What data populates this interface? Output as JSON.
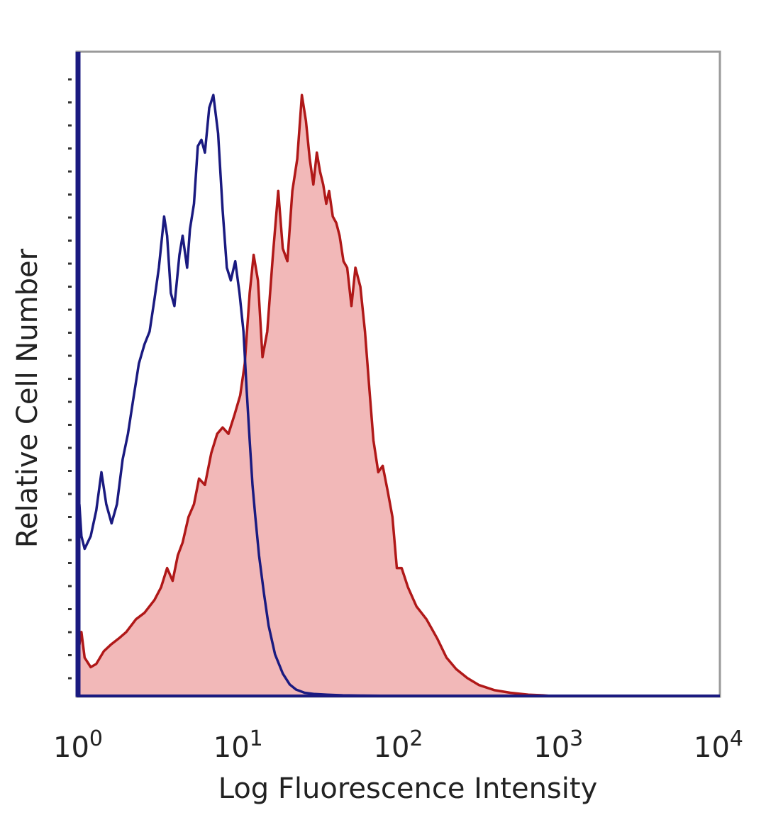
{
  "chart_data": {
    "type": "area",
    "xlabel": "Log Fluorescence Intensity",
    "ylabel": "Relative Cell Number",
    "x_scale": "log",
    "xlim": [
      1,
      10000
    ],
    "ylim": [
      0,
      1
    ],
    "grid": false,
    "x_ticks": [
      {
        "value": 1,
        "base": "10",
        "exp": "0"
      },
      {
        "value": 10,
        "base": "10",
        "exp": "1"
      },
      {
        "value": 100,
        "base": "10",
        "exp": "2"
      },
      {
        "value": 1000,
        "base": "10",
        "exp": "3"
      },
      {
        "value": 10000,
        "base": "10",
        "exp": "4"
      }
    ],
    "colors": {
      "isotype": "#1a1a80",
      "stained_line": "#b01818",
      "stained_fill": "#f2b8b8",
      "frame": "#9a9a9a",
      "axis": "#1a1a80"
    },
    "series": [
      {
        "style": "line",
        "color": "#1a1a80",
        "x": [
          1.02,
          1.05,
          1.1,
          1.2,
          1.3,
          1.4,
          1.5,
          1.62,
          1.75,
          1.9,
          2.05,
          2.2,
          2.4,
          2.6,
          2.8,
          3.0,
          3.2,
          3.45,
          3.6,
          3.8,
          4.0,
          4.3,
          4.5,
          4.8,
          5.0,
          5.3,
          5.6,
          5.9,
          6.2,
          6.6,
          7.0,
          7.5,
          8.0,
          8.5,
          9.0,
          9.6,
          10.2,
          10.8,
          11.3,
          11.8,
          12.3,
          12.8,
          13.5,
          14.5,
          15.5,
          17.0,
          19.0,
          21.0,
          23.0,
          26.0,
          30.0,
          36.0,
          45.0,
          60.0,
          100.0,
          1000.0,
          10000.0
        ],
        "y": [
          0.3,
          0.25,
          0.23,
          0.25,
          0.29,
          0.35,
          0.3,
          0.27,
          0.3,
          0.37,
          0.41,
          0.46,
          0.52,
          0.55,
          0.57,
          0.62,
          0.67,
          0.75,
          0.72,
          0.63,
          0.61,
          0.69,
          0.72,
          0.67,
          0.73,
          0.77,
          0.86,
          0.87,
          0.85,
          0.92,
          0.94,
          0.88,
          0.76,
          0.67,
          0.65,
          0.68,
          0.63,
          0.57,
          0.48,
          0.4,
          0.33,
          0.28,
          0.22,
          0.16,
          0.11,
          0.065,
          0.035,
          0.018,
          0.01,
          0.005,
          0.003,
          0.002,
          0.001,
          0.0005,
          0.0,
          0.0,
          0.0
        ]
      },
      {
        "style": "filled",
        "color": "#b01818",
        "x": [
          1.02,
          1.05,
          1.1,
          1.2,
          1.3,
          1.45,
          1.6,
          1.8,
          2.0,
          2.3,
          2.6,
          3.0,
          3.3,
          3.6,
          3.9,
          4.2,
          4.5,
          4.9,
          5.3,
          5.7,
          6.2,
          6.8,
          7.4,
          8.0,
          8.7,
          9.5,
          10.3,
          11.0,
          11.8,
          12.5,
          13.3,
          14.2,
          15.2,
          16.5,
          17.8,
          19.0,
          20.3,
          21.8,
          23.4,
          25.0,
          26.5,
          28.0,
          29.5,
          31.0,
          32.5,
          34.0,
          35.5,
          37.0,
          39.0,
          41.0,
          43.0,
          45.5,
          48.0,
          51.0,
          54.0,
          58.0,
          62.0,
          66.0,
          70.0,
          75.0,
          80.0,
          86.0,
          92.0,
          98.0,
          105.0,
          115.0,
          130.0,
          150.0,
          175.0,
          200.0,
          230.0,
          270.0,
          320.0,
          400.0,
          500.0,
          650.0,
          800.0,
          900.0,
          10000.0
        ],
        "y": [
          0.08,
          0.1,
          0.06,
          0.045,
          0.05,
          0.07,
          0.08,
          0.09,
          0.1,
          0.12,
          0.13,
          0.15,
          0.17,
          0.2,
          0.18,
          0.22,
          0.24,
          0.28,
          0.3,
          0.34,
          0.33,
          0.38,
          0.41,
          0.42,
          0.41,
          0.44,
          0.47,
          0.52,
          0.63,
          0.69,
          0.65,
          0.53,
          0.57,
          0.69,
          0.79,
          0.7,
          0.68,
          0.79,
          0.84,
          0.94,
          0.9,
          0.84,
          0.8,
          0.85,
          0.82,
          0.8,
          0.77,
          0.79,
          0.75,
          0.74,
          0.72,
          0.68,
          0.67,
          0.61,
          0.67,
          0.64,
          0.57,
          0.48,
          0.4,
          0.35,
          0.36,
          0.32,
          0.28,
          0.2,
          0.2,
          0.17,
          0.14,
          0.12,
          0.09,
          0.06,
          0.042,
          0.028,
          0.017,
          0.009,
          0.005,
          0.002,
          0.001,
          0.0,
          0.0
        ]
      }
    ]
  }
}
